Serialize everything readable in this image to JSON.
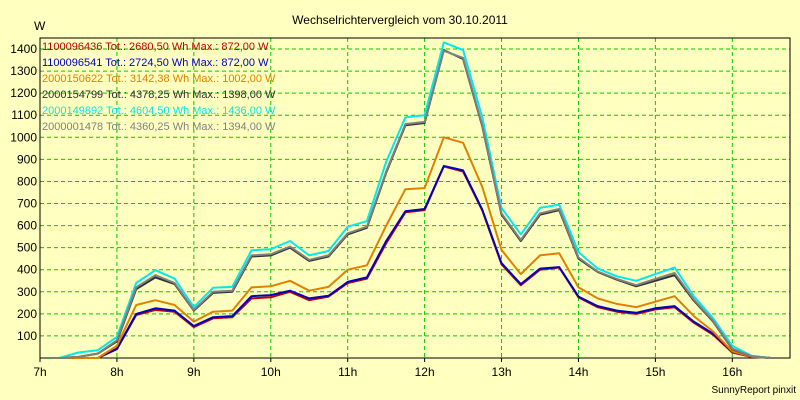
{
  "chart_data": {
    "type": "line",
    "title": "Wechselrichtervergleich vom 30.10.2011",
    "ylabel": "W",
    "xlabel": "",
    "ylim": [
      0,
      1450
    ],
    "xlim": [
      7,
      16.75
    ],
    "x_ticks": [
      7,
      8,
      9,
      10,
      11,
      12,
      13,
      14,
      15,
      16
    ],
    "x_tick_labels": [
      "7h",
      "8h",
      "9h",
      "10h",
      "11h",
      "12h",
      "13h",
      "14h",
      "15h",
      "16h"
    ],
    "y_ticks": [
      100,
      200,
      300,
      400,
      500,
      600,
      700,
      800,
      900,
      1000,
      1100,
      1200,
      1300,
      1400
    ],
    "y_tick_labels": [
      "100",
      "200",
      "300",
      "400",
      "500",
      "600",
      "700",
      "800",
      "900",
      "1000",
      "1100",
      "1200",
      "1300",
      "1400"
    ],
    "grid": true,
    "legend_position": "top-left",
    "x": [
      7.25,
      7.5,
      7.75,
      8.0,
      8.25,
      8.5,
      8.75,
      9.0,
      9.25,
      9.5,
      9.75,
      10.0,
      10.25,
      10.5,
      10.75,
      11.0,
      11.25,
      11.5,
      11.75,
      12.0,
      12.25,
      12.5,
      12.75,
      13.0,
      13.25,
      13.5,
      13.75,
      14.0,
      14.25,
      14.5,
      14.75,
      15.0,
      15.25,
      15.5,
      15.75,
      16.0,
      16.25,
      16.5
    ],
    "series": [
      {
        "name": "1100096436",
        "legend": "1100096436 Tot.: 2680,50 Wh Max.: 872,00 W",
        "color": "#c00000",
        "values": [
          0,
          0,
          0,
          40,
          195,
          218,
          210,
          140,
          180,
          185,
          270,
          275,
          300,
          262,
          278,
          340,
          360,
          520,
          660,
          670,
          868,
          845,
          668,
          425,
          330,
          400,
          410,
          275,
          230,
          210,
          200,
          220,
          230,
          160,
          105,
          25,
          5,
          0
        ]
      },
      {
        "name": "1100096541",
        "legend": "1100096541 Tot.: 2724,50 Wh Max.: 872,00 W",
        "color": "#0000c0",
        "values": [
          0,
          0,
          0,
          42,
          200,
          225,
          215,
          145,
          185,
          190,
          280,
          285,
          305,
          270,
          282,
          345,
          365,
          530,
          665,
          675,
          870,
          850,
          672,
          430,
          335,
          405,
          412,
          278,
          235,
          215,
          205,
          225,
          235,
          165,
          110,
          28,
          6,
          0
        ]
      },
      {
        "name": "2000150622",
        "legend": "2000150622 Tot.: 3142,38 Wh Max.: 1002,00 W",
        "color": "#e08000",
        "values": [
          0,
          0,
          0,
          55,
          240,
          262,
          240,
          165,
          210,
          215,
          320,
          325,
          350,
          305,
          322,
          400,
          420,
          600,
          765,
          770,
          1000,
          975,
          775,
          490,
          380,
          465,
          475,
          320,
          270,
          245,
          230,
          255,
          280,
          190,
          120,
          30,
          6,
          0
        ]
      },
      {
        "name": "2000154799",
        "legend": "2000154799 Tot.: 4378,25 Wh Max.: 1398,00 W",
        "color": "#303030",
        "values": [
          0,
          5,
          20,
          75,
          312,
          365,
          335,
          215,
          295,
          300,
          460,
          465,
          500,
          440,
          460,
          560,
          590,
          840,
          1055,
          1065,
          1395,
          1355,
          1050,
          650,
          530,
          650,
          670,
          450,
          390,
          355,
          325,
          350,
          375,
          260,
          165,
          40,
          8,
          0
        ]
      },
      {
        "name": "2000149892",
        "legend": "2000149892 Tot.: 4604,50 Wh Max.: 1436,00 W",
        "color": "#00e8f0",
        "values": [
          0,
          25,
          35,
          95,
          340,
          398,
          360,
          230,
          318,
          322,
          488,
          493,
          530,
          465,
          485,
          595,
          620,
          890,
          1090,
          1100,
          1430,
          1395,
          1090,
          680,
          560,
          680,
          695,
          480,
          405,
          370,
          350,
          380,
          410,
          280,
          180,
          55,
          10,
          0
        ]
      },
      {
        "name": "2000001478",
        "legend": "2000001478 Tot.: 4360,25 Wh Max.: 1394,00 W",
        "color": "#808080",
        "values": [
          0,
          5,
          20,
          80,
          320,
          375,
          340,
          218,
          300,
          305,
          465,
          470,
          505,
          445,
          465,
          565,
          595,
          845,
          1060,
          1070,
          1392,
          1360,
          1055,
          655,
          535,
          655,
          675,
          455,
          392,
          358,
          330,
          358,
          385,
          265,
          168,
          42,
          8,
          0
        ]
      }
    ],
    "credit": "SunnyReport pinxit"
  }
}
